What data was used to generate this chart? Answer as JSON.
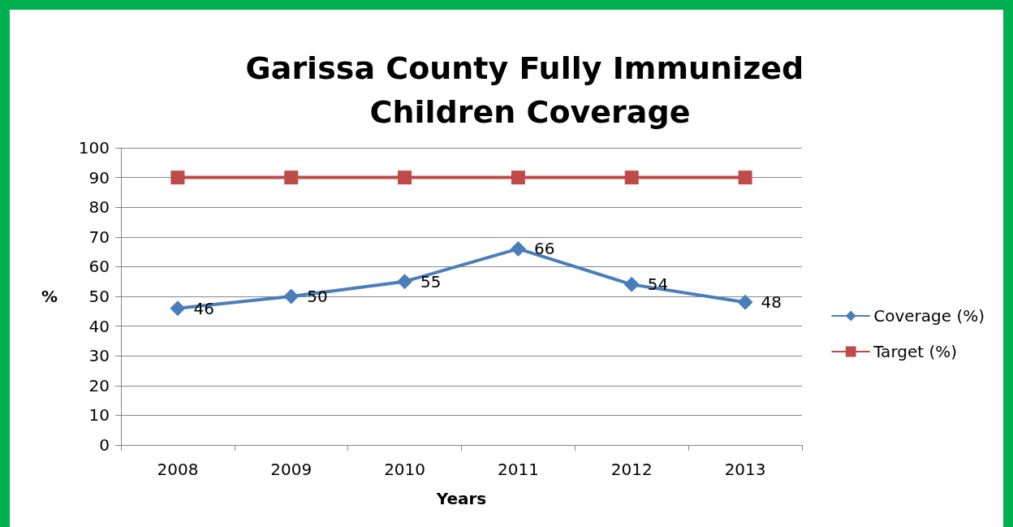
{
  "chart_data": {
    "type": "line",
    "title": "Garissa County Fully Immunized Children Coverage",
    "xlabel": "Years",
    "ylabel": "%",
    "categories": [
      "2008",
      "2009",
      "2010",
      "2011",
      "2012",
      "2013"
    ],
    "series": [
      {
        "name": "Coverage (%)",
        "color": "#4a7ebb",
        "values": [
          46,
          50,
          55,
          66,
          54,
          48
        ],
        "marker": "diamond",
        "value_labels": [
          "46",
          "50",
          "55",
          "66",
          "54",
          "48"
        ]
      },
      {
        "name": "Target (%)",
        "color": "#be4b48",
        "values": [
          90,
          90,
          90,
          90,
          90,
          90
        ],
        "marker": "square"
      }
    ],
    "ylim": [
      0,
      100
    ],
    "yticks": [
      0,
      10,
      20,
      30,
      40,
      50,
      60,
      70,
      80,
      90,
      100
    ],
    "grid": "y",
    "legend": "right",
    "line_style": "solid"
  }
}
